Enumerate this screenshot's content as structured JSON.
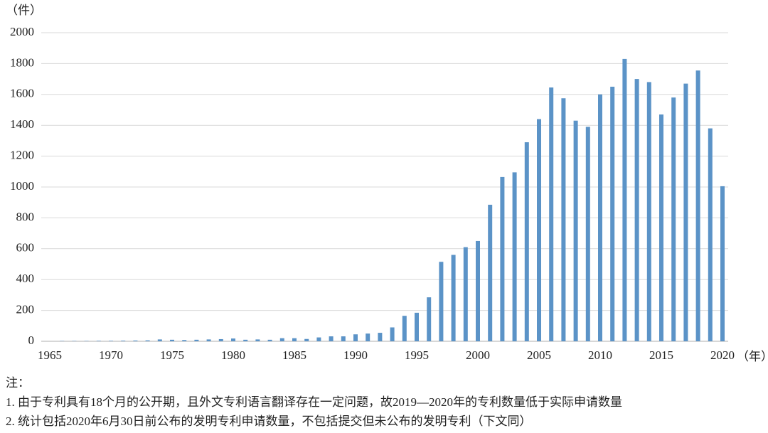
{
  "chart_data": {
    "type": "bar",
    "y_unit": "（件）",
    "x_unit": "（年）",
    "categories": [
      "1965",
      null,
      null,
      null,
      null,
      "1970",
      null,
      null,
      null,
      null,
      "1975",
      null,
      null,
      null,
      null,
      "1980",
      null,
      null,
      null,
      null,
      "1985",
      null,
      null,
      null,
      null,
      "1990",
      null,
      null,
      null,
      null,
      "1995",
      null,
      null,
      null,
      null,
      "2000",
      null,
      null,
      null,
      null,
      "2005",
      null,
      null,
      null,
      null,
      "2010",
      null,
      null,
      null,
      null,
      "2015",
      null,
      null,
      null,
      null,
      "2020"
    ],
    "values": [
      0,
      2,
      2,
      2,
      3,
      3,
      4,
      5,
      6,
      12,
      10,
      8,
      10,
      12,
      14,
      18,
      10,
      12,
      10,
      20,
      20,
      15,
      25,
      32,
      32,
      45,
      50,
      55,
      90,
      165,
      185,
      285,
      515,
      560,
      610,
      650,
      885,
      1065,
      1095,
      1290,
      1440,
      1645,
      1575,
      1430,
      1390,
      1600,
      1650,
      1830,
      1700,
      1680,
      1470,
      1580,
      1670,
      1755,
      1380,
      1005
    ],
    "color": "#5b93c7",
    "ylim": [
      0,
      2000
    ],
    "yticks": [
      0,
      200,
      400,
      600,
      800,
      1000,
      1200,
      1400,
      1600,
      1800,
      2000
    ],
    "grid": true,
    "notes": {
      "title": "注：",
      "lines": [
        "1. 由于专利具有18个月的公开期，且外文专利语言翻译存在一定问题，故2019—2020年的专利数量低于实际申请数量",
        "2. 统计包括2020年6月30日前公布的发明专利申请数量，不包括提交但未公布的发明专利（下文同）"
      ]
    }
  }
}
